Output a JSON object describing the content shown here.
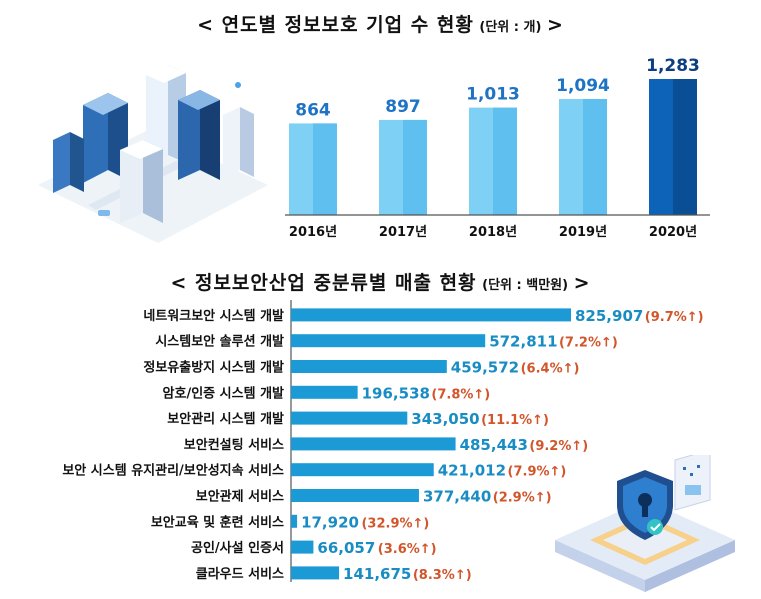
{
  "charts": {
    "top": {
      "title": "< 연도별 정보보호 기업 수 현황",
      "unit": "(단위 : 개)",
      "title_end": ">"
    },
    "bottom": {
      "title": "< 정보보안산업 중분류별 매출 현황",
      "unit": "(단위 : 백만원)",
      "title_end": ">"
    }
  },
  "chart_data": [
    {
      "type": "bar",
      "title": "연도별 정보보호 기업 수 현황",
      "unit": "단위 : 개",
      "categories": [
        "2016년",
        "2017년",
        "2018년",
        "2019년",
        "2020년"
      ],
      "values": [
        864,
        897,
        1013,
        1094,
        1283
      ],
      "value_labels": [
        "864",
        "897",
        "1,013",
        "1,094",
        "1,283"
      ],
      "colors": [
        "#7fd0f5",
        "#7fd0f5",
        "#7fd0f5",
        "#7fd0f5",
        "#0d63b8"
      ],
      "highlight_color": "#0d63b8",
      "label_color": "#1f73c4"
    },
    {
      "type": "bar",
      "orientation": "horizontal",
      "title": "정보보안산업 중분류별 매출 현황",
      "unit": "단위 : 백만원",
      "categories": [
        "네트워크보안 시스템 개발",
        "시스템보안 솔루션 개발",
        "정보유출방지 시스템 개발",
        "암호/인증 시스템 개발",
        "보안관리 시스템 개발",
        "보안컨설팅 서비스",
        "보안 시스템 유지관리/보안성지속 서비스",
        "보안관제 서비스",
        "보안교육 및 훈련 서비스",
        "공인/사설 인증서",
        "클라우드 서비스"
      ],
      "values": [
        825907,
        572811,
        459572,
        196538,
        343050,
        485443,
        421012,
        377440,
        17920,
        66057,
        141675
      ],
      "value_labels": [
        "825,907",
        "572,811",
        "459,572",
        "196,538",
        "343,050",
        "485,443",
        "421,012",
        "377,440",
        "17,920",
        "66,057",
        "141,675"
      ],
      "growth_labels": [
        "(9.7%↑)",
        "(7.2%↑)",
        "(6.4%↑)",
        "(7.8%↑)",
        "(11.1%↑)",
        "(9.2%↑)",
        "(7.9%↑)",
        "(2.9%↑)",
        "(32.9%↑)",
        "(3.6%↑)",
        "(8.3%↑)"
      ],
      "growth_pct": [
        9.7,
        7.2,
        6.4,
        7.8,
        11.1,
        9.2,
        7.9,
        2.9,
        32.9,
        3.6,
        8.3
      ],
      "bar_color": "#1b9ad6",
      "value_color": "#1a8cc4",
      "growth_color": "#d2552b"
    }
  ],
  "illustrations": {
    "city": "isometric-city-illustration",
    "security": "security-shield-illustration"
  }
}
